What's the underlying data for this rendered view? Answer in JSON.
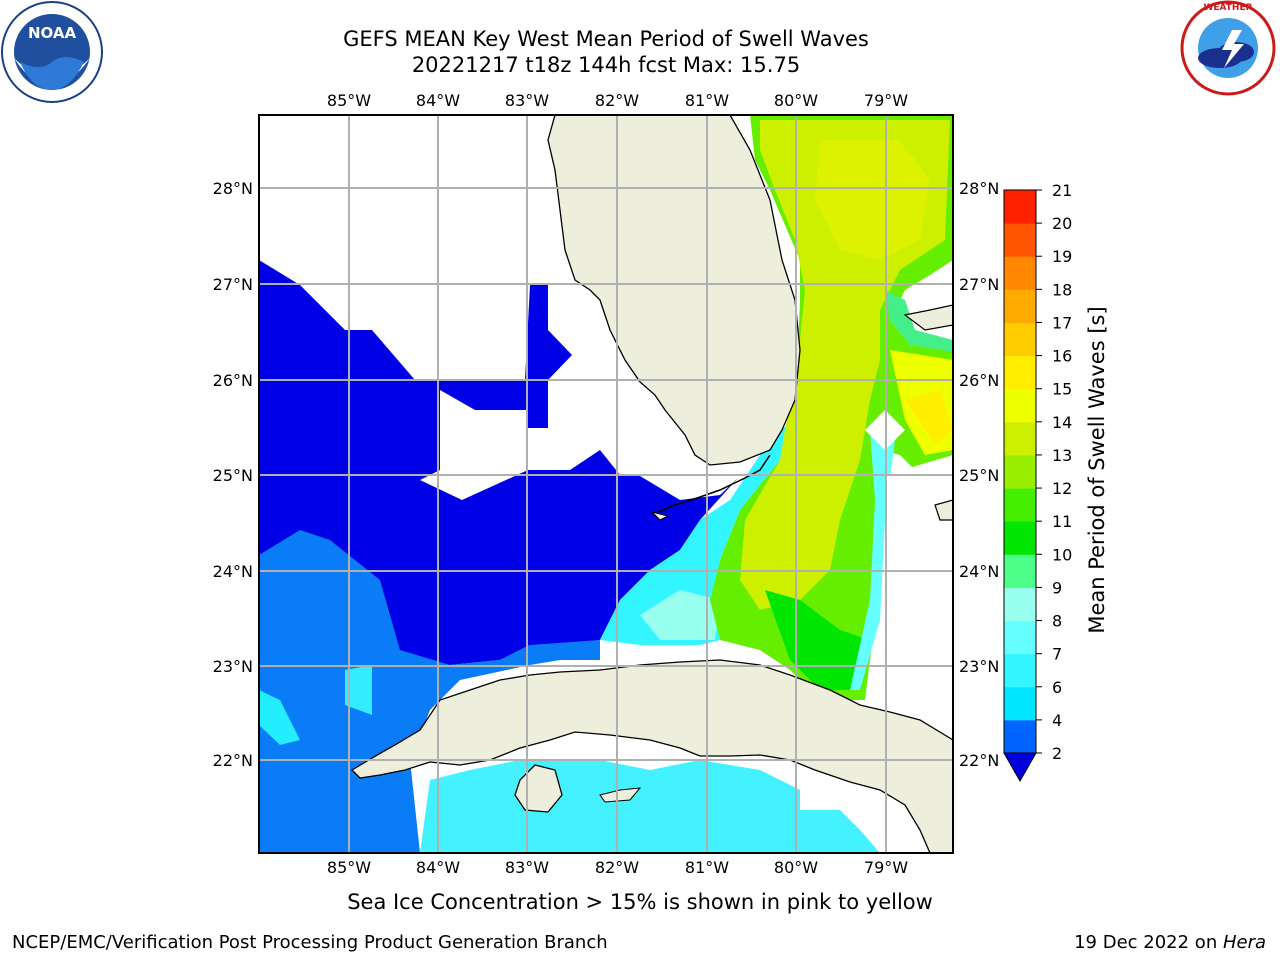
{
  "title": {
    "line1": "GEFS MEAN Key West Mean Period of Swell Waves",
    "line2": "20221217 t18z 144h fcst   Max: 15.75"
  },
  "logos": {
    "left": "noara-logo-icon",
    "right": "nws-logo-icon",
    "noaa_text": "NOAA",
    "noaa_ring_text": "NATIONAL OCEANIC AND ATMOSPHERIC ADMINISTRATION · U.S. DEPARTMENT OF COMMERCE",
    "nws_ring_text": "NATIONAL WEATHER SERVICE"
  },
  "map": {
    "lon_labels": [
      "85°W",
      "84°W",
      "83°W",
      "82°W",
      "81°W",
      "80°W",
      "79°W"
    ],
    "lat_labels": [
      "28°N",
      "27°N",
      "26°N",
      "25°N",
      "24°N",
      "23°N",
      "22°N"
    ],
    "extent": {
      "lon_min": -86.0,
      "lon_max": -78.25,
      "lat_min": 21.0,
      "lat_max": 28.75
    },
    "gridlines": true
  },
  "colorbar": {
    "label": "Mean Period of Swell Waves [s]",
    "ticks": [
      "2",
      "4",
      "6",
      "7",
      "8",
      "9",
      "10",
      "11",
      "12",
      "13",
      "14",
      "15",
      "16",
      "17",
      "18",
      "19",
      "20",
      "21"
    ],
    "colors": [
      "#0064ff",
      "#00e6ff",
      "#33f5ff",
      "#66ffff",
      "#99ffee",
      "#4dff88",
      "#00e600",
      "#44ee00",
      "#99ee00",
      "#ccf000",
      "#eeff00",
      "#ffee00",
      "#ffcc00",
      "#ffaa00",
      "#ff8800",
      "#ff5500",
      "#ff2200"
    ],
    "extend_color": "#0000dd"
  },
  "chart_data": {
    "type": "heatmap",
    "variable": "Mean Period of Swell Waves",
    "units": "s",
    "max": 15.75,
    "levels": [
      2,
      4,
      6,
      7,
      8,
      9,
      10,
      11,
      12,
      13,
      14,
      15,
      16,
      17,
      18,
      19,
      20,
      21
    ]
  },
  "ice_note": "Sea Ice Concentration > 15% is shown in pink to yellow",
  "footer": {
    "left": "NCEP/EMC/Verification Post Processing Product Generation Branch",
    "right_date": "19 Dec 2022 on ",
    "right_host": "Hera"
  }
}
